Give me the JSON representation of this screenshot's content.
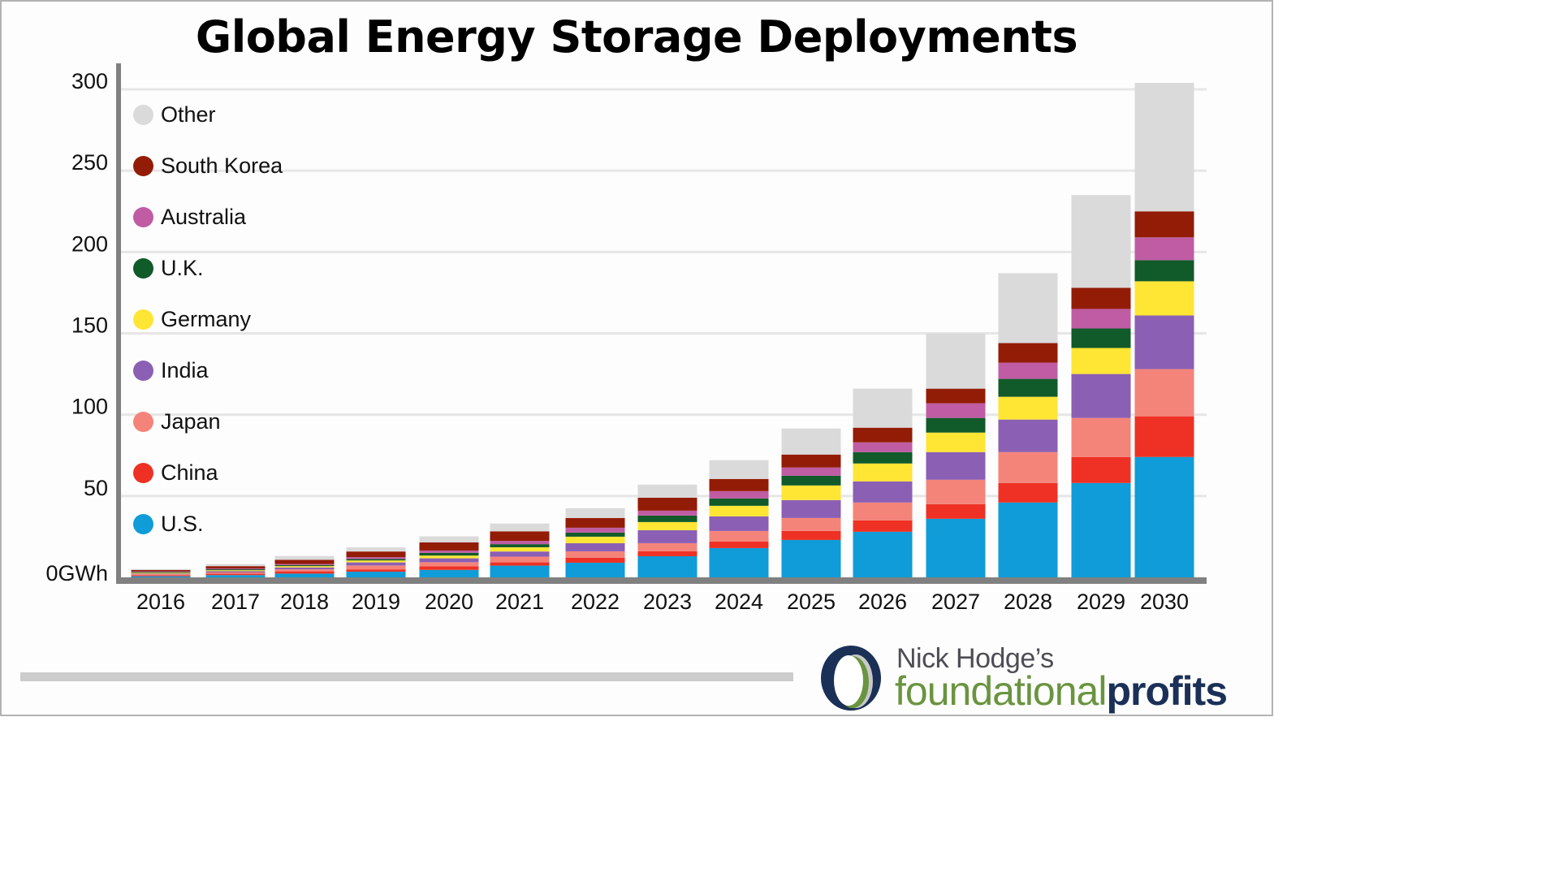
{
  "chart_data": {
    "type": "bar",
    "stacked": true,
    "title": "Global Energy Storage Deployments",
    "xlabel": "",
    "ylabel": "",
    "y_unit_label": "GWh",
    "ylim": [
      0,
      300
    ],
    "yticks": [
      0,
      50,
      100,
      150,
      200,
      250,
      300
    ],
    "ytick_labels": [
      "0GWh",
      "50",
      "100",
      "150",
      "200",
      "250",
      "300"
    ],
    "grid": true,
    "legend_position": "top-left",
    "categories": [
      "2016",
      "2017",
      "2018",
      "2019",
      "2020",
      "2021",
      "2022",
      "2023",
      "2024",
      "2025",
      "2026",
      "2027",
      "2028",
      "2029",
      "2030"
    ],
    "series": [
      {
        "name": "U.S.",
        "color": "#0f9cd8",
        "values": [
          0.7,
          1.4,
          2.3,
          3.5,
          4.6,
          7.2,
          9,
          13,
          18,
          23,
          28,
          36,
          46,
          58,
          74
        ]
      },
      {
        "name": "China",
        "color": "#ee3124",
        "values": [
          0.6,
          0.8,
          1.4,
          1.4,
          2.2,
          2,
          3,
          3,
          4,
          5.5,
          7,
          9,
          12,
          16,
          25
        ]
      },
      {
        "name": "Japan",
        "color": "#f4847a",
        "values": [
          0.6,
          0.8,
          1.2,
          2.4,
          2.5,
          3.5,
          4,
          5,
          6.5,
          8,
          11,
          15,
          19,
          24,
          29
        ]
      },
      {
        "name": "India",
        "color": "#8b5fb4",
        "values": [
          0.4,
          0.8,
          1.2,
          1.9,
          2.4,
          3.2,
          5,
          8,
          9,
          11,
          13,
          17,
          20,
          27,
          33
        ]
      },
      {
        "name": "Germany",
        "color": "#ffe534",
        "values": [
          0.5,
          0.6,
          0.8,
          1.2,
          1.7,
          2.6,
          4,
          5,
          6.5,
          9,
          11,
          12,
          14,
          16,
          21
        ]
      },
      {
        "name": "U.K.",
        "color": "#115a2a",
        "values": [
          0.5,
          0.6,
          0.7,
          0.9,
          1.7,
          1.9,
          2.5,
          4,
          4.5,
          6,
          7,
          9,
          11,
          12,
          13
        ]
      },
      {
        "name": "Australia",
        "color": "#c05ca4",
        "values": [
          0.4,
          0.5,
          0.6,
          1.1,
          1.4,
          2,
          3,
          3,
          4.5,
          5,
          6,
          9,
          10,
          12,
          14
        ]
      },
      {
        "name": "South Korea",
        "color": "#931c06",
        "values": [
          0.8,
          1.4,
          2.6,
          3.5,
          5,
          5.9,
          6,
          8,
          7.5,
          8,
          9,
          9,
          12,
          13,
          16
        ]
      },
      {
        "name": "Other",
        "color": "#dadada",
        "values": [
          0.6,
          1.3,
          2.3,
          2.6,
          3.7,
          4.8,
          6,
          8,
          11.5,
          16,
          24,
          34,
          43,
          57,
          79
        ]
      }
    ],
    "legend_order": [
      "Other",
      "South Korea",
      "Australia",
      "U.K.",
      "Germany",
      "India",
      "Japan",
      "China",
      "U.S."
    ]
  },
  "branding": {
    "top_line": "Nick Hodge’s",
    "word_a": "foundational",
    "word_b": "profits",
    "colors": {
      "navy": "#1b3057",
      "green": "#6a9440",
      "gray": "#c8c8c8"
    }
  }
}
